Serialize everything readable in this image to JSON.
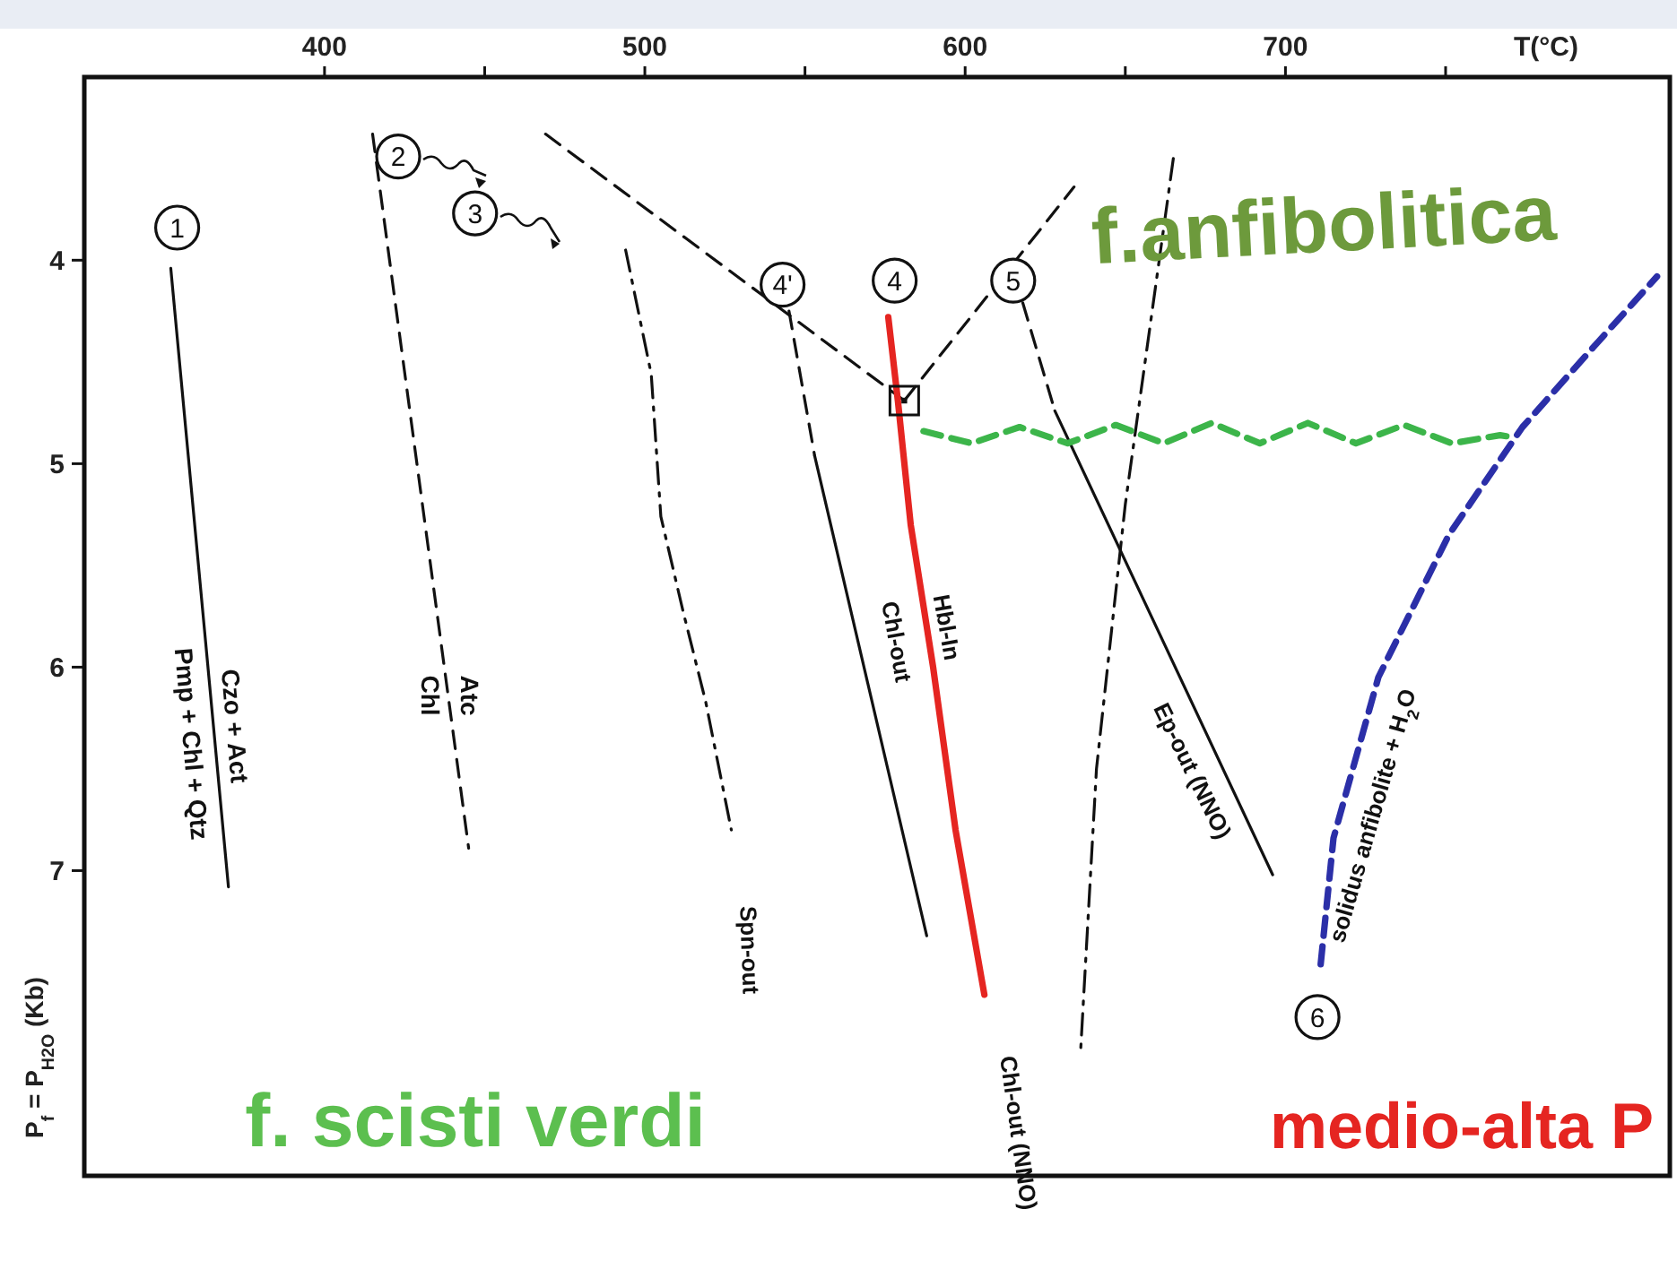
{
  "chart_data": {
    "type": "line",
    "xlabel": "T(°C)",
    "ylabel": "P$_{f}$ = P$_{H2O}$ (Kb)",
    "xlim": [
      325,
      820
    ],
    "ylim": [
      8.5,
      3.1
    ],
    "xticks": [
      400,
      {
        "value": 450,
        "label": null
      },
      500,
      {
        "value": 550,
        "label": null
      },
      600,
      {
        "value": 650,
        "label": null
      },
      700,
      {
        "value": 750,
        "label": null
      }
    ],
    "yticks": [
      4,
      5,
      6,
      7
    ],
    "grid": false,
    "series": [
      {
        "color": "#111111",
        "line_style": "solid",
        "x": [
          352,
          370
        ],
        "values": [
          4.04,
          7.08
        ]
      },
      {
        "color": "#111111",
        "line_style": "dashed",
        "x": [
          415,
          445
        ],
        "values": [
          3.38,
          6.89
        ]
      },
      {
        "color": "#111111",
        "line_style": "dotted",
        "x": [
          494,
          502,
          505,
          512,
          519,
          527
        ],
        "values": [
          3.95,
          4.56,
          5.26,
          5.73,
          6.17,
          6.8
        ]
      },
      {
        "color": "#111111",
        "line_style": "dashed",
        "x": [
          469,
          581
        ],
        "values": [
          3.38,
          4.69
        ]
      },
      {
        "color": "#111111",
        "line_style": "dashed",
        "x": [
          545,
          553
        ],
        "values": [
          4.25,
          4.96
        ]
      },
      {
        "color": "#111111",
        "line_style": "solid",
        "x": [
          553,
          588
        ],
        "values": [
          4.96,
          7.32
        ]
      },
      {
        "color": "#e52521",
        "line_style": "solid",
        "x": [
          576,
          579,
          583,
          590,
          597,
          606
        ],
        "values": [
          4.28,
          4.69,
          5.3,
          6.0,
          6.8,
          7.61
        ]
      },
      {
        "color": "#111111",
        "line_style": "dashed",
        "x": [
          581,
          634
        ],
        "values": [
          4.69,
          3.64
        ]
      },
      {
        "color": "#111111",
        "line_style": "dotted",
        "x": [
          665,
          650,
          641,
          636
        ],
        "values": [
          3.5,
          5.2,
          6.5,
          7.9
        ]
      },
      {
        "color": "#111111",
        "line_style": "dashed",
        "x": [
          618,
          628
        ],
        "values": [
          4.21,
          4.74
        ]
      },
      {
        "color": "#111111",
        "line_style": "solid",
        "x": [
          628,
          696
        ],
        "values": [
          4.74,
          7.02
        ]
      },
      {
        "color": "#3cb54a",
        "line_style": "dashed",
        "x": [
          587,
          602,
          617,
          632,
          647,
          662,
          677,
          692,
          707,
          722,
          737,
          752,
          767,
          771
        ],
        "values": [
          4.84,
          4.9,
          4.82,
          4.9,
          4.81,
          4.9,
          4.8,
          4.9,
          4.8,
          4.9,
          4.81,
          4.9,
          4.86,
          4.87
        ]
      },
      {
        "color": "#2b2fa8",
        "line_style": "dashed",
        "x": [
          711,
          715,
          729,
          751,
          774,
          796,
          816
        ],
        "values": [
          7.46,
          6.84,
          6.05,
          5.35,
          4.82,
          4.43,
          4.08
        ]
      },
      {
        "type": "scatter",
        "marker": "square",
        "color": "#111111",
        "x": [
          581
        ],
        "values": [
          4.69
        ]
      }
    ],
    "annotations": [
      {
        "text": "1",
        "x": 354,
        "y": 3.84
      },
      {
        "text": "2",
        "x": 423,
        "y": 3.49
      },
      {
        "text": "3",
        "x": 447,
        "y": 3.77
      },
      {
        "text": "4'",
        "x": 543,
        "y": 4.12
      },
      {
        "text": "4",
        "x": 578,
        "y": 4.1
      },
      {
        "text": "5",
        "x": 615,
        "y": 4.1
      },
      {
        "text": "6",
        "x": 710,
        "y": 7.72
      },
      "Czo + Act",
      "Pmp + Chl + Qtz",
      "Atc",
      "Chl",
      "Spn-out",
      "Chl-out",
      "Hbl-In",
      "Chl-out (NNO)",
      "Ep-out (NNO)",
      "solidus anfibolite + H$_{2}$O",
      "f.anfibolitica",
      "f. scisti verdi",
      "medio-alta P"
    ]
  }
}
